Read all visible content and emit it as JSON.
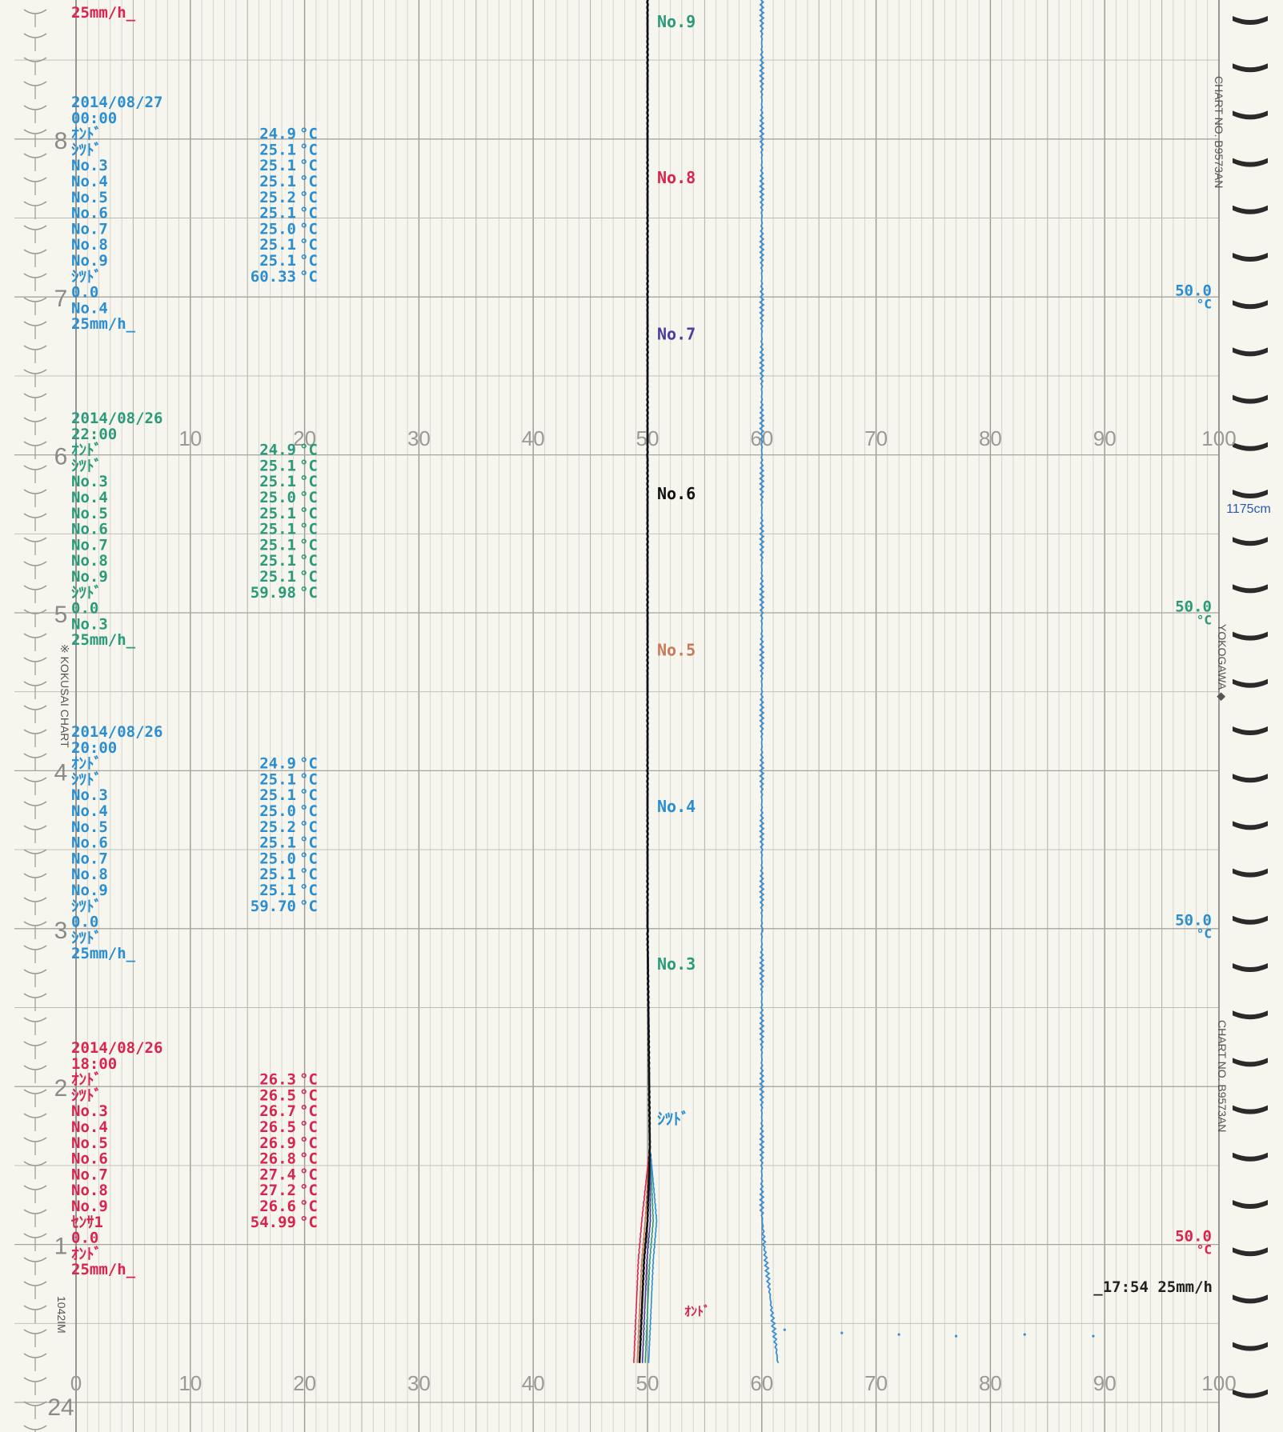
{
  "chart_data": {
    "type": "line",
    "x_ticks_top": [
      "10",
      "20",
      "30",
      "40",
      "50",
      "60",
      "70",
      "80",
      "90",
      "100"
    ],
    "x_ticks_bottom": [
      "0",
      "10",
      "20",
      "30",
      "40",
      "50",
      "60",
      "70",
      "80",
      "90",
      "100"
    ],
    "xlim": [
      0,
      100
    ],
    "y_hour_labels": [
      "1",
      "2",
      "3",
      "4",
      "5",
      "6",
      "7",
      "8"
    ],
    "y_bottom_label": "24",
    "grid": true,
    "series": [
      {
        "name": "No.9",
        "color": "#2a9a7a"
      },
      {
        "name": "No.8",
        "color": "#d8244e"
      },
      {
        "name": "No.7",
        "color": "#4a3d9c"
      },
      {
        "name": "No.6",
        "color": "#111111"
      },
      {
        "name": "No.5",
        "color": "#c97a5a"
      },
      {
        "name": "No.4",
        "color": "#2a8ed0"
      },
      {
        "name": "No.3",
        "color": "#2a9a7a"
      },
      {
        "name": "ｼﾂﾄﾞ",
        "color": "#2a8ed0"
      },
      {
        "name": "ｵﾝﾄﾞ",
        "color": "#d8244e"
      }
    ],
    "trace_main": {
      "x": [
        49.3,
        49.7,
        50.0,
        50.2,
        50.0,
        50.0,
        50.0
      ],
      "hours": [
        0.25,
        0.9,
        1.15,
        1.6,
        3.0,
        6.0,
        9.0
      ]
    },
    "trace_humidity": {
      "x": [
        61.4,
        60.2,
        60.0,
        60.0,
        60.0
      ],
      "hours": [
        0.25,
        1.0,
        1.2,
        3.0,
        9.0
      ]
    },
    "top_partial": {
      "text": "25mm/h_",
      "color": "#d8244e"
    },
    "blocks": [
      {
        "date": "2014/08/27",
        "time": "00:00",
        "color": "#2a8ed0",
        "rows": [
          {
            "label": "ｵﾝﾄﾞ",
            "value": "24.9",
            "unit": "°C"
          },
          {
            "label": "ｼﾂﾄﾞ",
            "value": "25.1",
            "unit": "°C"
          },
          {
            "label": "No.3",
            "value": "25.1",
            "unit": "°C"
          },
          {
            "label": "No.4",
            "value": "25.1",
            "unit": "°C"
          },
          {
            "label": "No.5",
            "value": "25.2",
            "unit": "°C"
          },
          {
            "label": "No.6",
            "value": "25.1",
            "unit": "°C"
          },
          {
            "label": "No.7",
            "value": "25.0",
            "unit": "°C"
          },
          {
            "label": "No.8",
            "value": "25.1",
            "unit": "°C"
          },
          {
            "label": "No.9",
            "value": "25.1",
            "unit": "°C"
          },
          {
            "label": "ｼﾂﾄﾞ",
            "value": "60.33",
            "unit": "°C"
          }
        ],
        "footer": [
          "0.0",
          "No.4",
          "25mm/h_"
        ],
        "scale_right": "50.0",
        "scale_unit": "°C"
      },
      {
        "date": "2014/08/26",
        "time": "22:00",
        "color": "#2a9a7a",
        "rows": [
          {
            "label": "ｵﾝﾄﾞ",
            "value": "24.9",
            "unit": "°C"
          },
          {
            "label": "ｼﾂﾄﾞ",
            "value": "25.1",
            "unit": "°C"
          },
          {
            "label": "No.3",
            "value": "25.1",
            "unit": "°C"
          },
          {
            "label": "No.4",
            "value": "25.0",
            "unit": "°C"
          },
          {
            "label": "No.5",
            "value": "25.1",
            "unit": "°C"
          },
          {
            "label": "No.6",
            "value": "25.1",
            "unit": "°C"
          },
          {
            "label": "No.7",
            "value": "25.1",
            "unit": "°C"
          },
          {
            "label": "No.8",
            "value": "25.1",
            "unit": "°C"
          },
          {
            "label": "No.9",
            "value": "25.1",
            "unit": "°C"
          },
          {
            "label": "ｼﾂﾄﾞ",
            "value": "59.98",
            "unit": "°C"
          }
        ],
        "footer": [
          "0.0",
          "No.3",
          "25mm/h_"
        ],
        "scale_right": "50.0",
        "scale_unit": "°C"
      },
      {
        "date": "2014/08/26",
        "time": "20:00",
        "color": "#2a8ed0",
        "rows": [
          {
            "label": "ｵﾝﾄﾞ",
            "value": "24.9",
            "unit": "°C"
          },
          {
            "label": "ｼﾂﾄﾞ",
            "value": "25.1",
            "unit": "°C"
          },
          {
            "label": "No.3",
            "value": "25.1",
            "unit": "°C"
          },
          {
            "label": "No.4",
            "value": "25.0",
            "unit": "°C"
          },
          {
            "label": "No.5",
            "value": "25.2",
            "unit": "°C"
          },
          {
            "label": "No.6",
            "value": "25.1",
            "unit": "°C"
          },
          {
            "label": "No.7",
            "value": "25.0",
            "unit": "°C"
          },
          {
            "label": "No.8",
            "value": "25.1",
            "unit": "°C"
          },
          {
            "label": "No.9",
            "value": "25.1",
            "unit": "°C"
          },
          {
            "label": "ｼﾂﾄﾞ",
            "value": "59.70",
            "unit": "°C"
          }
        ],
        "footer": [
          "0.0",
          "ｼﾂﾄﾞ",
          "25mm/h_"
        ],
        "scale_right": "50.0",
        "scale_unit": "°C"
      },
      {
        "date": "2014/08/26",
        "time": "18:00",
        "color": "#d8244e",
        "rows": [
          {
            "label": "ｵﾝﾄﾞ",
            "value": "26.3",
            "unit": "°C"
          },
          {
            "label": "ｼﾂﾄﾞ",
            "value": "26.5",
            "unit": "°C"
          },
          {
            "label": "No.3",
            "value": "26.7",
            "unit": "°C"
          },
          {
            "label": "No.4",
            "value": "26.5",
            "unit": "°C"
          },
          {
            "label": "No.5",
            "value": "26.9",
            "unit": "°C"
          },
          {
            "label": "No.6",
            "value": "26.8",
            "unit": "°C"
          },
          {
            "label": "No.7",
            "value": "27.4",
            "unit": "°C"
          },
          {
            "label": "No.8",
            "value": "27.2",
            "unit": "°C"
          },
          {
            "label": "No.9",
            "value": "26.6",
            "unit": "°C"
          },
          {
            "label": "ｾﾝｻ1",
            "value": "54.99",
            "unit": "°C"
          }
        ],
        "footer": [
          "0.0",
          "ｵﾝﾄﾞ",
          "25mm/h_"
        ],
        "scale_right": "50.0",
        "scale_unit": "°C"
      }
    ],
    "start_annotation": "_17:54 25mm/h",
    "side_label": "1175cm"
  },
  "paper": {
    "chart_no": "CHART NO. B9573AN",
    "brand_left": "※ KOKUSAI CHART",
    "brand_right": "YOKOGAWA ◆",
    "code": "1042IM"
  },
  "colors": {
    "grid_major": "#9a9a92",
    "grid_minor": "#c8c8c0",
    "paper": "#f6f5ee"
  }
}
